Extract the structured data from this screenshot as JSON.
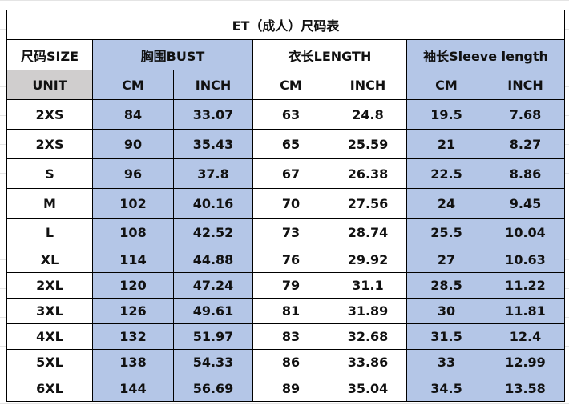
{
  "title": "ET（成人）尺码表",
  "header": [
    "尺码SIZE",
    "胸围BUST",
    "衣长LENGTH",
    "袖长Sleeve length"
  ],
  "units": [
    "UNIT",
    "CM",
    "INCH",
    "CM",
    "INCH",
    "CM",
    "INCH"
  ],
  "rows": [
    [
      "2XS",
      84,
      33.07,
      63,
      24.8,
      19.5,
      7.68
    ],
    [
      "2XS",
      90,
      35.43,
      65,
      25.59,
      21,
      8.27
    ],
    [
      "S",
      96,
      37.8,
      67,
      26.38,
      22.5,
      8.86
    ],
    [
      "M",
      102,
      40.16,
      70,
      27.56,
      24,
      9.45
    ],
    [
      "L",
      108,
      42.52,
      73,
      28.74,
      25.5,
      10.04
    ],
    [
      "XL",
      114,
      44.88,
      76,
      29.92,
      27,
      10.63
    ],
    [
      "2XL",
      120,
      47.24,
      79,
      31.1,
      28.5,
      11.22
    ],
    [
      "3XL",
      126,
      49.61,
      81,
      31.89,
      30,
      11.81
    ],
    [
      "4XL",
      132,
      51.97,
      83,
      32.68,
      31.5,
      12.4
    ],
    [
      "5XL",
      138,
      54.33,
      86,
      33.86,
      33,
      12.99
    ],
    [
      "6XL",
      144,
      56.69,
      89,
      35.04,
      34.5,
      13.58
    ]
  ]
}
